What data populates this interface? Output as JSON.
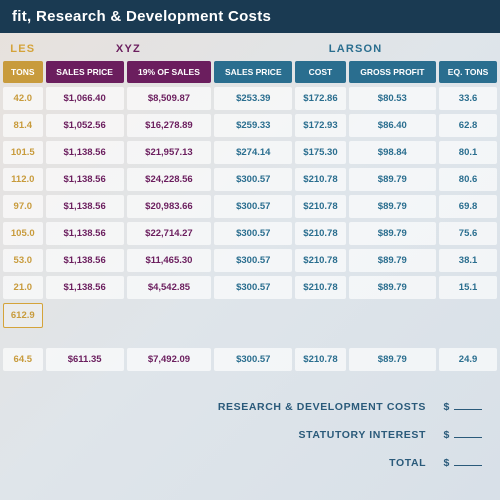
{
  "title": "fit, Research & Development Costs",
  "groups": {
    "les": "LES",
    "xyz": "XYZ",
    "larson": "LARSON"
  },
  "headers": {
    "les_tons": "TONS",
    "xyz_price": "SALES PRICE",
    "xyz_pct": "19% OF SALES",
    "lar_price": "SALES PRICE",
    "lar_cost": "COST",
    "lar_gp": "GROSS PROFIT",
    "lar_tons": "EQ. TONS"
  },
  "rows": [
    {
      "les_tons": "42.0",
      "xyz_price": "$1,066.40",
      "xyz_pct": "$8,509.87",
      "lar_price": "$253.39",
      "lar_cost": "$172.86",
      "lar_gp": "$80.53",
      "lar_tons": "33.6"
    },
    {
      "les_tons": "81.4",
      "xyz_price": "$1,052.56",
      "xyz_pct": "$16,278.89",
      "lar_price": "$259.33",
      "lar_cost": "$172.93",
      "lar_gp": "$86.40",
      "lar_tons": "62.8"
    },
    {
      "les_tons": "101.5",
      "xyz_price": "$1,138.56",
      "xyz_pct": "$21,957.13",
      "lar_price": "$274.14",
      "lar_cost": "$175.30",
      "lar_gp": "$98.84",
      "lar_tons": "80.1"
    },
    {
      "les_tons": "112.0",
      "xyz_price": "$1,138.56",
      "xyz_pct": "$24,228.56",
      "lar_price": "$300.57",
      "lar_cost": "$210.78",
      "lar_gp": "$89.79",
      "lar_tons": "80.6"
    },
    {
      "les_tons": "97.0",
      "xyz_price": "$1,138.56",
      "xyz_pct": "$20,983.66",
      "lar_price": "$300.57",
      "lar_cost": "$210.78",
      "lar_gp": "$89.79",
      "lar_tons": "69.8"
    },
    {
      "les_tons": "105.0",
      "xyz_price": "$1,138.56",
      "xyz_pct": "$22,714.27",
      "lar_price": "$300.57",
      "lar_cost": "$210.78",
      "lar_gp": "$89.79",
      "lar_tons": "75.6"
    },
    {
      "les_tons": "53.0",
      "xyz_price": "$1,138.56",
      "xyz_pct": "$11,465.30",
      "lar_price": "$300.57",
      "lar_cost": "$210.78",
      "lar_gp": "$89.79",
      "lar_tons": "38.1"
    },
    {
      "les_tons": "21.0",
      "xyz_price": "$1,138.56",
      "xyz_pct": "$4,542.85",
      "lar_price": "$300.57",
      "lar_cost": "$210.78",
      "lar_gp": "$89.79",
      "lar_tons": "15.1"
    }
  ],
  "les_total": "612.9",
  "footer_row": {
    "les_tons": "64.5",
    "xyz_price": "$611.35",
    "xyz_pct": "$7,492.09",
    "lar_price": "$300.57",
    "lar_cost": "$210.78",
    "lar_gp": "$89.79",
    "lar_tons": "24.9"
  },
  "summary": {
    "rd": "RESEARCH & DEVELOPMENT COSTS",
    "si": "STATUTORY INTEREST",
    "total": "TOTAL",
    "cur": "$"
  },
  "colors": {
    "title_bg": "#1a3a52",
    "les": "#c89b3c",
    "xyz": "#6b1e5e",
    "lar": "#2a6e8f",
    "cell_bg": "rgba(255,255,255,0.65)"
  }
}
